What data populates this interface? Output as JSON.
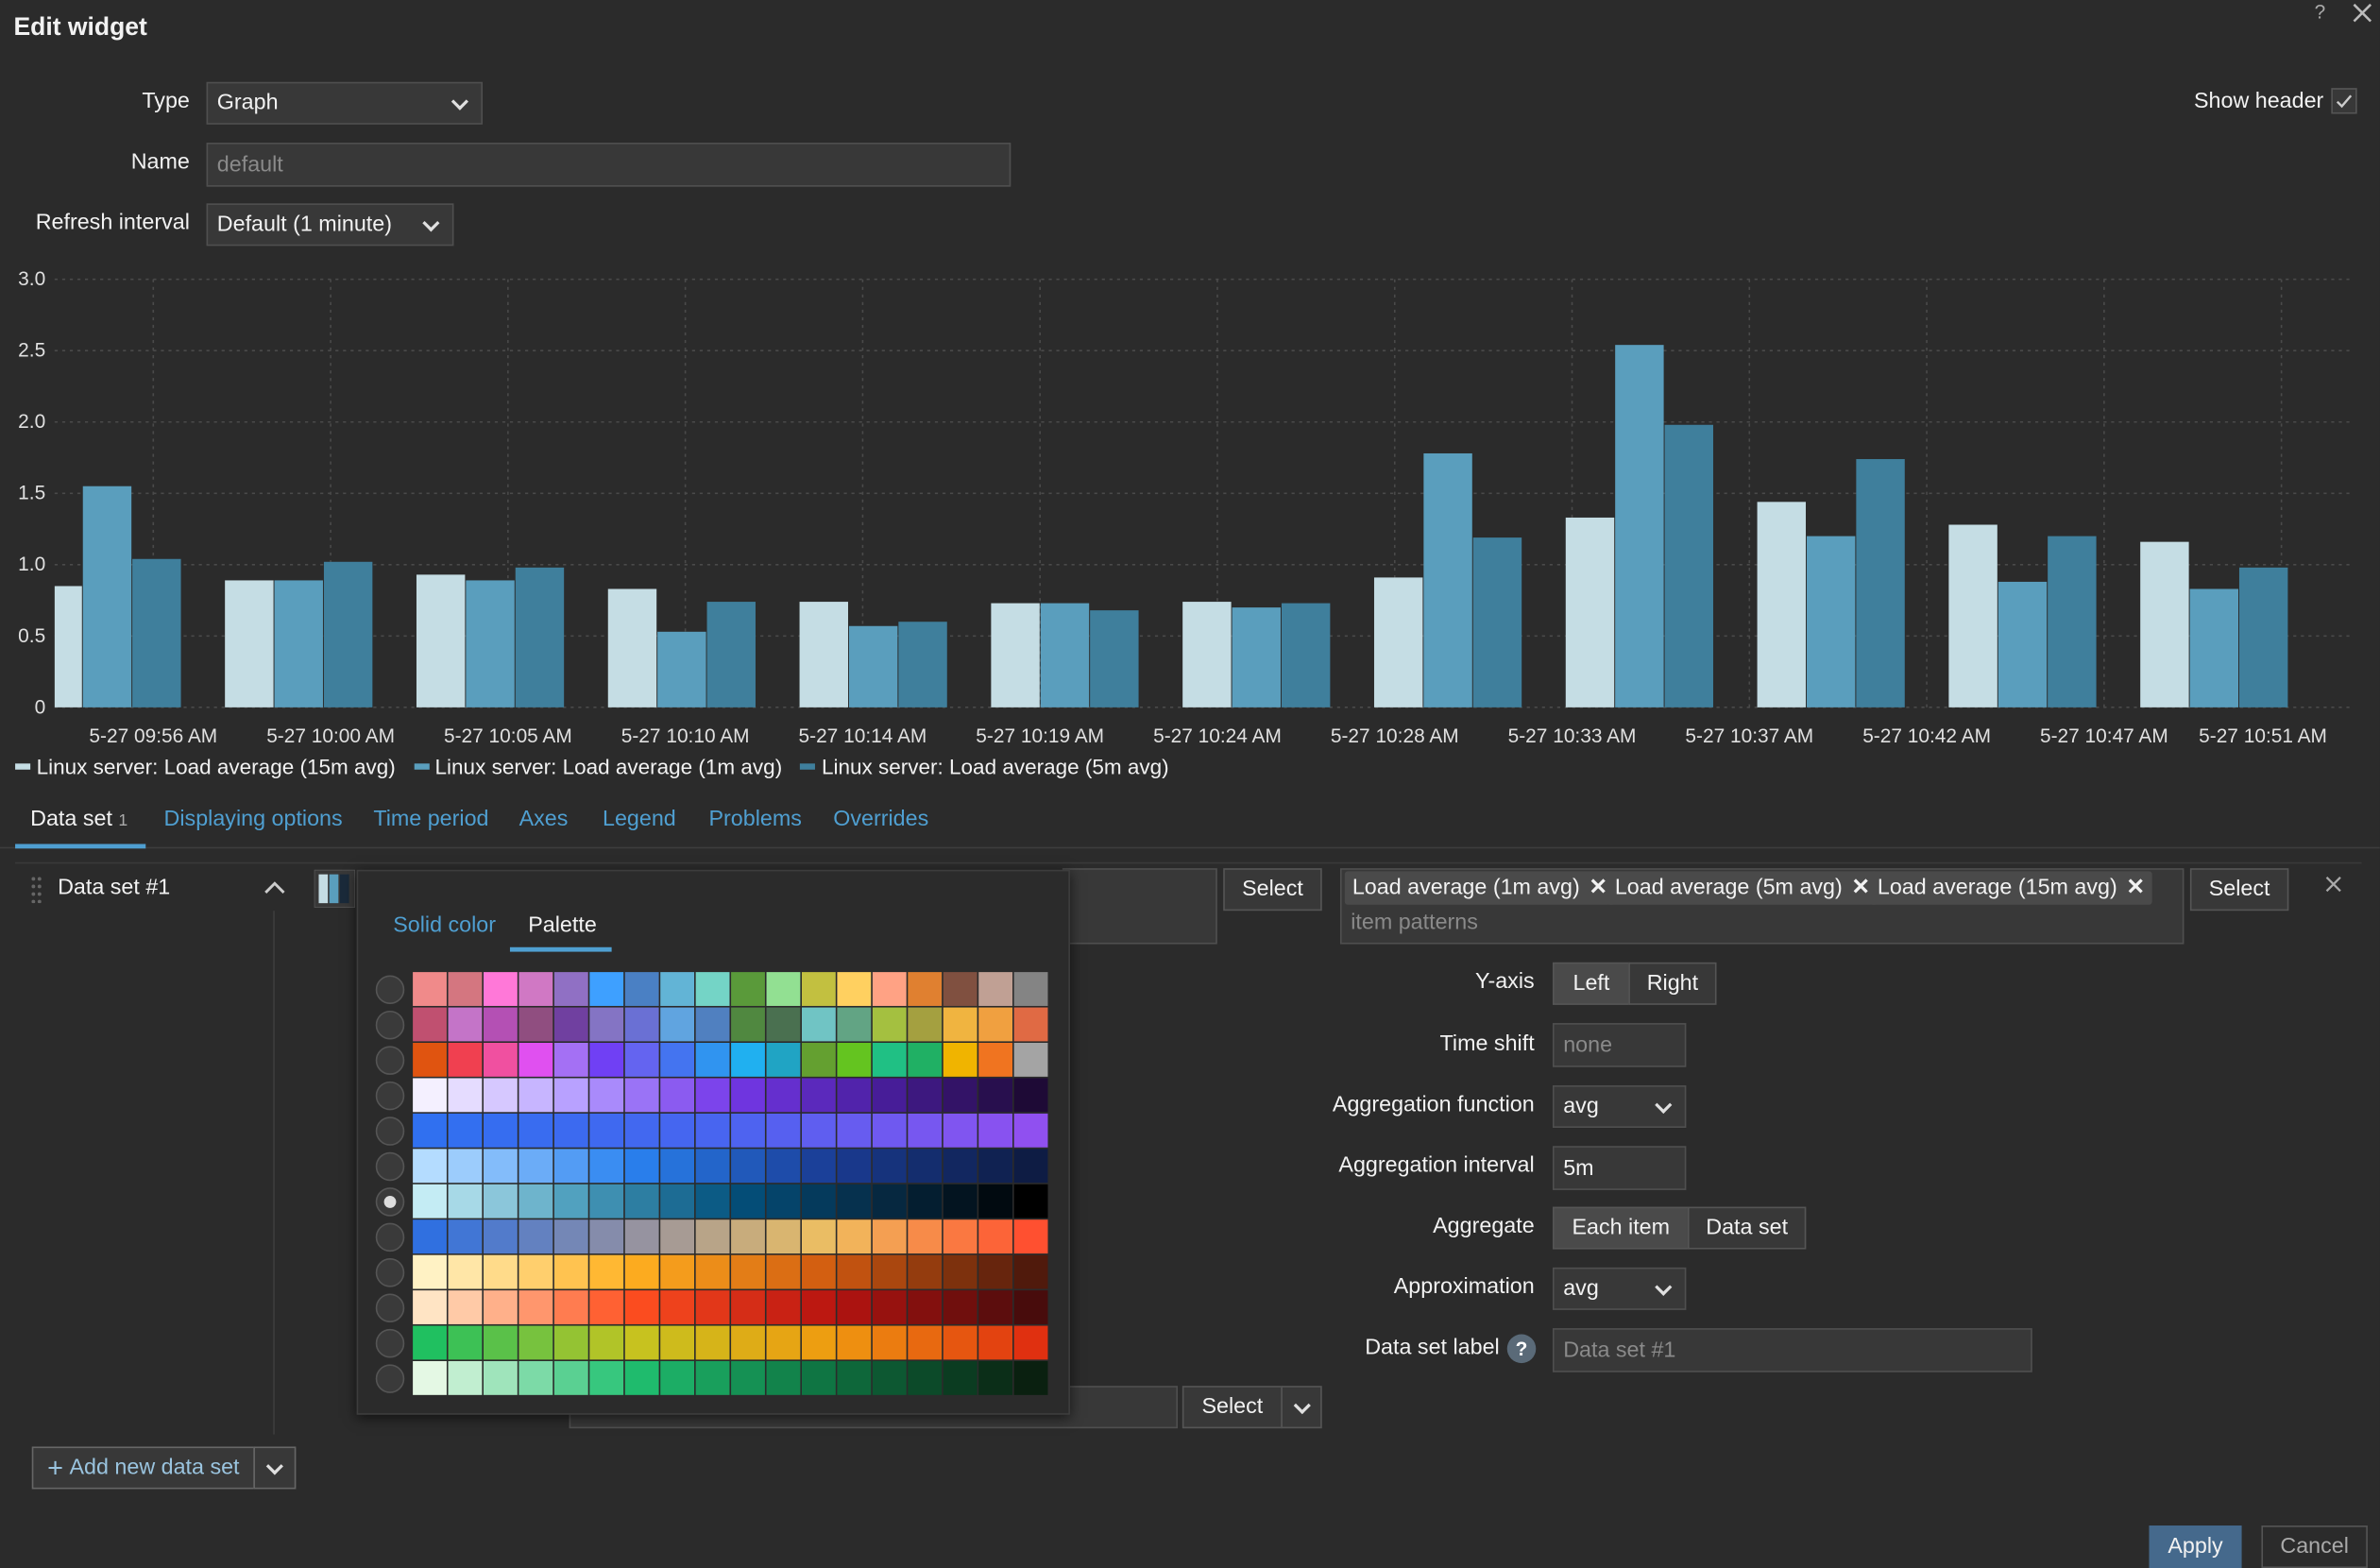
{
  "header": {
    "title": "Edit widget",
    "help": "?"
  },
  "form": {
    "type_label": "Type",
    "type_value": "Graph",
    "name_label": "Name",
    "name_placeholder": "default",
    "refresh_label": "Refresh interval",
    "refresh_value": "Default (1 minute)",
    "show_header": "Show header"
  },
  "chart_data": {
    "type": "bar",
    "x_labels": [
      "5-27 09:56 AM",
      "5-27 10:00 AM",
      "5-27 10:05 AM",
      "5-27 10:10 AM",
      "5-27 10:14 AM",
      "5-27 10:19 AM",
      "5-27 10:24 AM",
      "5-27 10:28 AM",
      "5-27 10:33 AM",
      "5-27 10:37 AM",
      "5-27 10:42 AM",
      "5-27 10:47 AM",
      "5-27 10:51 AM"
    ],
    "series": [
      {
        "name": "Linux server: Load average (15m avg)",
        "color": "#c5dde4",
        "values": [
          0.85,
          0.89,
          0.93,
          0.83,
          0.74,
          0.73,
          0.74,
          0.91,
          1.33,
          1.44,
          1.28,
          1.16
        ]
      },
      {
        "name": "Linux server: Load average (1m avg)",
        "color": "#5a9ebd",
        "values": [
          1.55,
          0.89,
          0.89,
          0.53,
          0.57,
          0.73,
          0.7,
          1.78,
          2.54,
          1.2,
          0.88,
          0.83
        ]
      },
      {
        "name": "Linux server: Load average (5m avg)",
        "color": "#3f7f9c",
        "values": [
          1.04,
          1.02,
          0.98,
          0.74,
          0.6,
          0.68,
          0.73,
          1.19,
          1.98,
          1.74,
          1.2,
          0.98
        ]
      }
    ],
    "ylim": [
      0,
      3
    ],
    "yticks": [
      0,
      0.5,
      {
        "value": 1,
        "label": "1.0"
      },
      1.5,
      {
        "value": 2,
        "label": "2.0"
      },
      2.5,
      {
        "value": 3,
        "label": "3.0"
      }
    ],
    "grid": true
  },
  "tabs": [
    "Data set",
    "Displaying options",
    "Time period",
    "Axes",
    "Legend",
    "Problems",
    "Overrides"
  ],
  "data_set_count": 1,
  "data_set": {
    "name": "Data set #1",
    "color_tabs": [
      "Solid color",
      "Palette"
    ],
    "host_select": "Select",
    "items": [
      "Load average (1m avg)",
      "Load average (5m avg)",
      "Load average (15m avg)"
    ],
    "item_placeholder": "item patterns",
    "item_select": "Select",
    "lower_select": "Select",
    "y_axis": {
      "label": "Y-axis",
      "options": [
        "Left",
        "Right"
      ]
    },
    "time_shift": {
      "label": "Time shift",
      "placeholder": "none"
    },
    "aggregation_function": {
      "label": "Aggregation function",
      "value": "avg"
    },
    "aggregation_interval": {
      "label": "Aggregation interval",
      "value": "5m"
    },
    "aggregate": {
      "label": "Aggregate",
      "options": [
        "Each item",
        "Data set"
      ]
    },
    "approximation": {
      "label": "Approximation",
      "value": "avg"
    },
    "data_set_label": {
      "label": "Data set label",
      "help": "?",
      "placeholder": "Data set #1"
    }
  },
  "footer": {
    "add": "Add new data set",
    "apply": "Apply",
    "cancel": "Cancel"
  }
}
